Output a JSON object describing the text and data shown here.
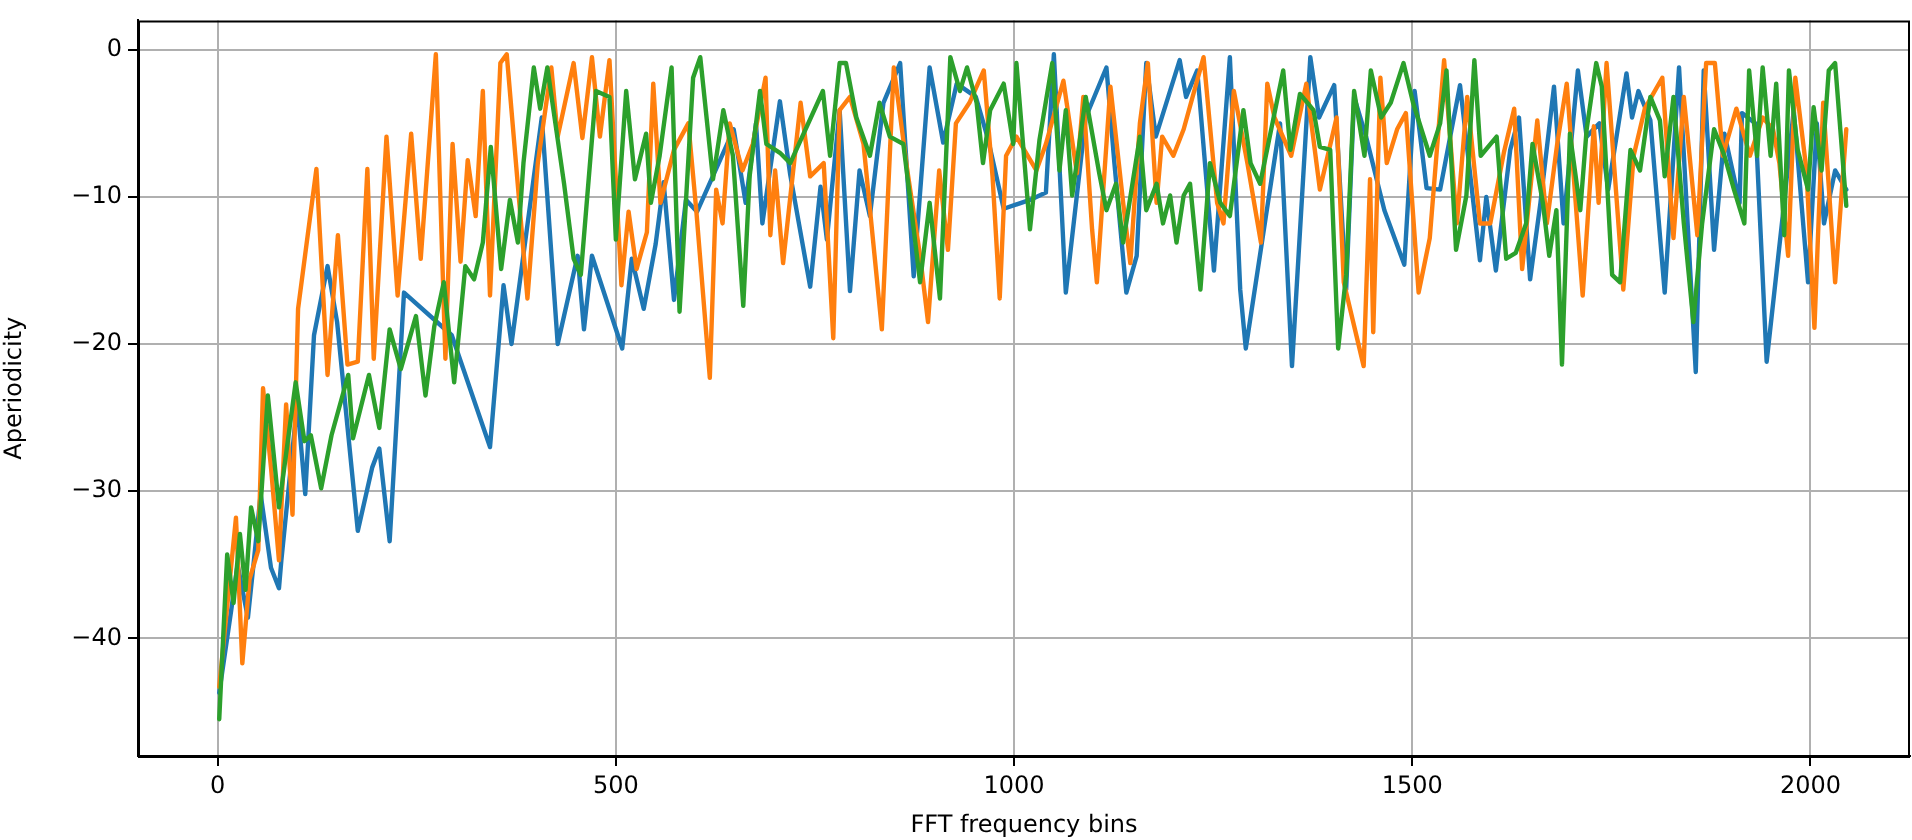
{
  "chart_data": {
    "type": "line",
    "xlabel": "FFT frequency bins",
    "ylabel": "Aperiodicity",
    "xlim": [
      -100,
      2125
    ],
    "ylim": [
      -48,
      2
    ],
    "xticks": [
      0,
      500,
      1000,
      1500,
      2000
    ],
    "yticks": [
      -40,
      -30,
      -20,
      -10,
      0
    ],
    "grid": true,
    "legend": false,
    "marker": "none",
    "line_style": "solid",
    "series": [
      {
        "color": "#1f77b4",
        "x": [
          2,
          17,
          25,
          38,
          45,
          54,
          67,
          77,
          80,
          100,
          110,
          121,
          138,
          150,
          176,
          194,
          203,
          216,
          234,
          294,
          342,
          359,
          369,
          407,
          427,
          452,
          460,
          470,
          508,
          520,
          535,
          550,
          560,
          573,
          588,
          602,
          648,
          663,
          676,
          684,
          706,
          719,
          744,
          757,
          765,
          781,
          794,
          806,
          819,
          836,
          857,
          874,
          894,
          911,
          928,
          952,
          967,
          987,
          1020,
          1040,
          1050,
          1065,
          1090,
          1116,
          1126,
          1141,
          1154,
          1166,
          1178,
          1208,
          1216,
          1230,
          1251,
          1271,
          1284,
          1291,
          1316,
          1334,
          1349,
          1372,
          1383,
          1402,
          1417,
          1427,
          1442,
          1465,
          1490,
          1503,
          1518,
          1535,
          1560,
          1585,
          1593,
          1605,
          1623,
          1634,
          1648,
          1661,
          1678,
          1690,
          1708,
          1719,
          1735,
          1746,
          1769,
          1776,
          1784,
          1799,
          1817,
          1835,
          1856,
          1866,
          1879,
          1892,
          1911,
          1914,
          1931,
          1945,
          1967,
          1979,
          1997,
          2008,
          2017,
          2031,
          2045
        ],
        "values": [
          -43.7,
          -38.1,
          -35,
          -38.6,
          -35,
          -30.2,
          -35.2,
          -36.6,
          -34.7,
          -24,
          -30.2,
          -19.4,
          -14.7,
          -18.5,
          -32.7,
          -28.4,
          -27.1,
          -33.4,
          -16.5,
          -19.4,
          -27,
          -16,
          -20,
          -4.6,
          -20,
          -14,
          -19,
          -14,
          -20.3,
          -14.2,
          -17.6,
          -13.2,
          -9,
          -17,
          -10.2,
          -11,
          -5.4,
          -10.4,
          -5,
          -11.8,
          -3.5,
          -8.5,
          -16.1,
          -9.3,
          -12.9,
          -4.1,
          -16.4,
          -8.2,
          -11.3,
          -3.6,
          -0.9,
          -15.4,
          -1.2,
          -6.3,
          -2.3,
          -3.2,
          -6,
          -10.8,
          -10.2,
          -9.7,
          -0.3,
          -16.5,
          -4.6,
          -1.2,
          -7.7,
          -16.5,
          -14,
          -0.9,
          -5.9,
          -0.7,
          -3.2,
          -1.4,
          -15,
          -0.5,
          -16.3,
          -20.3,
          -11.4,
          -5,
          -21.5,
          -0.5,
          -4.6,
          -2.4,
          -16.3,
          -3.2,
          -5.9,
          -10.9,
          -14.6,
          -2.8,
          -9.4,
          -9.5,
          -2.4,
          -14.3,
          -10,
          -15,
          -6.8,
          -4.6,
          -15.6,
          -10.4,
          -2.5,
          -11.8,
          -1.4,
          -5.9,
          -5,
          -9.5,
          -1.6,
          -4.6,
          -2.8,
          -4.8,
          -16.5,
          -1.2,
          -21.9,
          -1.4,
          -13.6,
          -5.7,
          -10.4,
          -4.3,
          -5,
          -21.2,
          -10.4,
          -4.1,
          -15.8,
          -5,
          -11.8,
          -8.2,
          -9.5
        ]
      },
      {
        "color": "#ff7f0e",
        "x": [
          2,
          23,
          31,
          40,
          51,
          57,
          67,
          77,
          86,
          94,
          101,
          124,
          138,
          151,
          163,
          176,
          188,
          196,
          212,
          226,
          243,
          255,
          274,
          286,
          295,
          305,
          314,
          324,
          333,
          342,
          355,
          363,
          389,
          402,
          419,
          427,
          447,
          458,
          470,
          480,
          492,
          507,
          516,
          526,
          539,
          547,
          556,
          573,
          591,
          601,
          618,
          626,
          634,
          643,
          659,
          672,
          688,
          694,
          700,
          710,
          732,
          744,
          761,
          773,
          781,
          794,
          811,
          834,
          849,
          866,
          882,
          892,
          906,
          917,
          927,
          944,
          962,
          973,
          982,
          990,
          1003,
          1028,
          1040,
          1062,
          1079,
          1087,
          1098,
          1104,
          1121,
          1137,
          1146,
          1158,
          1168,
          1179,
          1186,
          1200,
          1213,
          1238,
          1255,
          1263,
          1276,
          1293,
          1310,
          1318,
          1327,
          1348,
          1367,
          1384,
          1405,
          1414,
          1439,
          1447,
          1451,
          1460,
          1468,
          1481,
          1492,
          1508,
          1522,
          1540,
          1556,
          1569,
          1585,
          1598,
          1615,
          1628,
          1638,
          1657,
          1669,
          1682,
          1694,
          1714,
          1728,
          1734,
          1744,
          1765,
          1778,
          1792,
          1814,
          1828,
          1841,
          1858,
          1869,
          1880,
          1890,
          1907,
          1924,
          1940,
          1953,
          1961,
          1972,
          1981,
          1995,
          2005,
          2016,
          2031,
          2045
        ],
        "values": [
          -43.3,
          -31.8,
          -41.7,
          -36,
          -34,
          -23,
          -28.4,
          -34.7,
          -24.1,
          -31.6,
          -17.6,
          -8.1,
          -22.1,
          -12.6,
          -21.4,
          -21.2,
          -8.1,
          -21,
          -5.9,
          -16.7,
          -5.7,
          -14.2,
          -0.3,
          -21,
          -6.4,
          -14.4,
          -7.5,
          -11.3,
          -2.8,
          -16.7,
          -0.9,
          -0.3,
          -16.9,
          -7.7,
          -1.2,
          -5.9,
          -0.9,
          -6,
          -0.5,
          -5.9,
          -0.7,
          -16,
          -11,
          -14.9,
          -12.4,
          -2.3,
          -10.4,
          -6.8,
          -5,
          -10.9,
          -22.3,
          -9.5,
          -11.8,
          -5,
          -8.2,
          -6.4,
          -1.9,
          -12.6,
          -8.2,
          -14.5,
          -3.6,
          -8.6,
          -7.7,
          -19.6,
          -4.1,
          -3.2,
          -6.4,
          -19,
          -1.2,
          -8.2,
          -14,
          -18.5,
          -8.2,
          -13.6,
          -5,
          -3.6,
          -1.4,
          -8.6,
          -16.9,
          -7.2,
          -5.9,
          -8.2,
          -6.4,
          -2.1,
          -8.4,
          -3.2,
          -12.2,
          -15.8,
          -2.5,
          -10.4,
          -14.5,
          -5,
          -0.9,
          -10.4,
          -5.9,
          -7.2,
          -5.4,
          -0.5,
          -10.4,
          -11.8,
          -2.8,
          -7.7,
          -13.1,
          -2.3,
          -4.6,
          -7.2,
          -2.3,
          -9.5,
          -4.6,
          -15.8,
          -21.5,
          -8.8,
          -19.2,
          -1.9,
          -7.7,
          -5.4,
          -4.3,
          -16.5,
          -12.8,
          -0.7,
          -11.8,
          -3.2,
          -11.8,
          -11.8,
          -7,
          -4,
          -14.9,
          -4.8,
          -11.8,
          -6.4,
          -2.3,
          -16.7,
          -5.2,
          -10.4,
          -0.9,
          -16.3,
          -7.2,
          -4,
          -1.9,
          -12.8,
          -3.2,
          -12.6,
          -0.9,
          -0.9,
          -7.2,
          -4,
          -7.2,
          -4.6,
          -5.4,
          -7.7,
          -14,
          -1.9,
          -8.2,
          -18.9,
          -3.6,
          -15.8,
          -5.4
        ]
      },
      {
        "color": "#2ca02c",
        "x": [
          2,
          12,
          20,
          28,
          35,
          42,
          51,
          63,
          77,
          98,
          109,
          117,
          130,
          143,
          164,
          170,
          190,
          203,
          216,
          230,
          249,
          261,
          272,
          284,
          297,
          311,
          322,
          333,
          343,
          356,
          367,
          377,
          384,
          397,
          405,
          414,
          435,
          447,
          456,
          475,
          492,
          500,
          513,
          524,
          538,
          544,
          555,
          570,
          580,
          597,
          606,
          622,
          635,
          647,
          660,
          668,
          681,
          689,
          706,
          719,
          760,
          769,
          781,
          789,
          802,
          819,
          831,
          844,
          861,
          869,
          882,
          894,
          907,
          920,
          932,
          941,
          953,
          961,
          970,
          987,
          999,
          1003,
          1020,
          1032,
          1048,
          1057,
          1065,
          1073,
          1082,
          1090,
          1107,
          1116,
          1128,
          1137,
          1158,
          1166,
          1179,
          1187,
          1196,
          1204,
          1213,
          1221,
          1234,
          1246,
          1259,
          1271,
          1288,
          1297,
          1309,
          1338,
          1347,
          1359,
          1376,
          1384,
          1397,
          1407,
          1417,
          1427,
          1440,
          1448,
          1461,
          1473,
          1489,
          1501,
          1522,
          1535,
          1543,
          1555,
          1568,
          1578,
          1586,
          1606,
          1618,
          1630,
          1643,
          1651,
          1664,
          1672,
          1681,
          1688,
          1698,
          1711,
          1719,
          1731,
          1738,
          1751,
          1761,
          1774,
          1786,
          1799,
          1811,
          1817,
          1828,
          1841,
          1853,
          1864,
          1879,
          1892,
          1904,
          1917,
          1923,
          1933,
          1940,
          1950,
          1957,
          1967,
          1973,
          1984,
          1997,
          2004,
          2014,
          2023,
          2031,
          2045
        ],
        "values": [
          -45.5,
          -34.3,
          -37.6,
          -32.9,
          -36.7,
          -31.1,
          -33.4,
          -23.5,
          -31.1,
          -22.6,
          -26.6,
          -26.2,
          -29.8,
          -26.2,
          -22.1,
          -26.4,
          -22.1,
          -25.7,
          -19,
          -21.7,
          -18.1,
          -23.5,
          -18.8,
          -15.8,
          -22.6,
          -14.7,
          -15.6,
          -13.1,
          -6.6,
          -14.9,
          -10.2,
          -13.1,
          -7.7,
          -1.2,
          -4,
          -1.2,
          -9.1,
          -14.2,
          -15.3,
          -2.8,
          -3.2,
          -12.9,
          -2.8,
          -8.8,
          -5.7,
          -10.4,
          -7.2,
          -1.2,
          -17.8,
          -1.9,
          -0.5,
          -8.8,
          -4.1,
          -7.2,
          -17.4,
          -8.6,
          -2.8,
          -6.4,
          -7,
          -7.7,
          -2.8,
          -7.2,
          -0.9,
          -0.9,
          -4.6,
          -7.2,
          -3.6,
          -5.9,
          -6.4,
          -9.9,
          -15.8,
          -10.4,
          -16.9,
          -0.5,
          -2.8,
          -1.2,
          -3.6,
          -7.7,
          -4.1,
          -2.3,
          -6.4,
          -0.9,
          -12.2,
          -6.1,
          -0.9,
          -8.2,
          -4.1,
          -9.9,
          -6.4,
          -3.2,
          -8.4,
          -10.9,
          -9.1,
          -13.1,
          -5.9,
          -10.9,
          -9.1,
          -11.8,
          -9.9,
          -13.1,
          -9.9,
          -9.1,
          -16.3,
          -7.7,
          -10.4,
          -11.3,
          -4.1,
          -7.7,
          -9.1,
          -1.4,
          -6.8,
          -3,
          -4.1,
          -6.6,
          -6.8,
          -20.3,
          -15.3,
          -2.8,
          -7.2,
          -1.4,
          -4.6,
          -3.6,
          -0.9,
          -3.6,
          -7.2,
          -5,
          -1.4,
          -13.6,
          -9.9,
          -0.7,
          -7.2,
          -5.9,
          -14.2,
          -13.8,
          -11.8,
          -6.4,
          -10.4,
          -14,
          -10.9,
          -21.4,
          -5.7,
          -10.9,
          -5.4,
          -0.9,
          -2.5,
          -15.3,
          -15.8,
          -6.8,
          -8.2,
          -3.2,
          -4.8,
          -8.6,
          -3.2,
          -11.8,
          -18.5,
          -11.8,
          -5.4,
          -7.2,
          -9.5,
          -11.8,
          -1.4,
          -7.2,
          -1.2,
          -7.2,
          -2.3,
          -12.6,
          -1.4,
          -6.8,
          -9.5,
          -3.9,
          -8.2,
          -1.4,
          -0.9,
          -10.6
        ]
      }
    ]
  }
}
